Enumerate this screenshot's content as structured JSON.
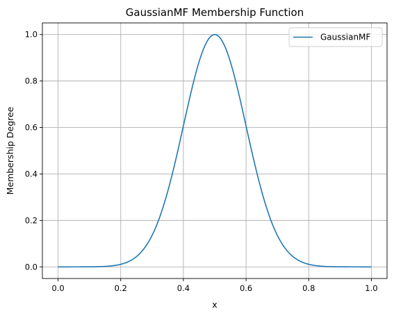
{
  "chart_data": {
    "type": "line",
    "title": "GaussianMF Membership Function",
    "xlabel": "x",
    "ylabel": "Membership Degree",
    "xlim": [
      -0.05,
      1.05
    ],
    "ylim": [
      -0.05,
      1.05
    ],
    "xticks": [
      "0.0",
      "0.2",
      "0.4",
      "0.6",
      "0.8",
      "1.0"
    ],
    "yticks": [
      "0.0",
      "0.2",
      "0.4",
      "0.6",
      "0.8",
      "1.0"
    ],
    "grid": true,
    "legend": "top-right",
    "series": [
      {
        "name": "GaussianMF",
        "color": "#1f77b4",
        "mean": 0.5,
        "sigma": 0.1,
        "x": [
          0.0,
          0.05,
          0.1,
          0.15,
          0.2,
          0.25,
          0.3,
          0.35,
          0.4,
          0.45,
          0.5,
          0.55,
          0.6,
          0.65,
          0.7,
          0.75,
          0.8,
          0.85,
          0.9,
          0.95,
          1.0
        ],
        "y": [
          0.0,
          0.0,
          0.0,
          0.002,
          0.011,
          0.044,
          0.135,
          0.325,
          0.607,
          0.882,
          1.0,
          0.882,
          0.607,
          0.325,
          0.135,
          0.044,
          0.011,
          0.002,
          0.0,
          0.0,
          0.0
        ]
      }
    ]
  }
}
